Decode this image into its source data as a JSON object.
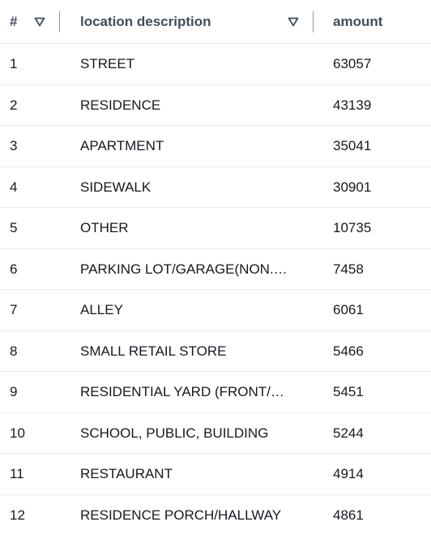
{
  "table": {
    "columns": {
      "number": "#",
      "location": "location description",
      "amount": "amount"
    },
    "rows": [
      {
        "num": "1",
        "location": "STREET",
        "amount": "63057"
      },
      {
        "num": "2",
        "location": "RESIDENCE",
        "amount": "43139"
      },
      {
        "num": "3",
        "location": "APARTMENT",
        "amount": "35041"
      },
      {
        "num": "4",
        "location": "SIDEWALK",
        "amount": "30901"
      },
      {
        "num": "5",
        "location": "OTHER",
        "amount": "10735"
      },
      {
        "num": "6",
        "location": "PARKING LOT/GARAGE(NON.R…",
        "amount": "7458"
      },
      {
        "num": "7",
        "location": "ALLEY",
        "amount": "6061"
      },
      {
        "num": "8",
        "location": "SMALL RETAIL STORE",
        "amount": "5466"
      },
      {
        "num": "9",
        "location": "RESIDENTIAL YARD (FRONT/B…",
        "amount": "5451"
      },
      {
        "num": "10",
        "location": "SCHOOL, PUBLIC, BUILDING",
        "amount": "5244"
      },
      {
        "num": "11",
        "location": "RESTAURANT",
        "amount": "4914"
      },
      {
        "num": "12",
        "location": "RESIDENCE PORCH/HALLWAY",
        "amount": "4861"
      }
    ]
  },
  "icons": {
    "sort": "sort-descending-icon"
  },
  "colors": {
    "header_text": "#414d5c",
    "cell_text": "#16191f",
    "row_border": "#e9ebed",
    "divider": "#8d99a8"
  }
}
